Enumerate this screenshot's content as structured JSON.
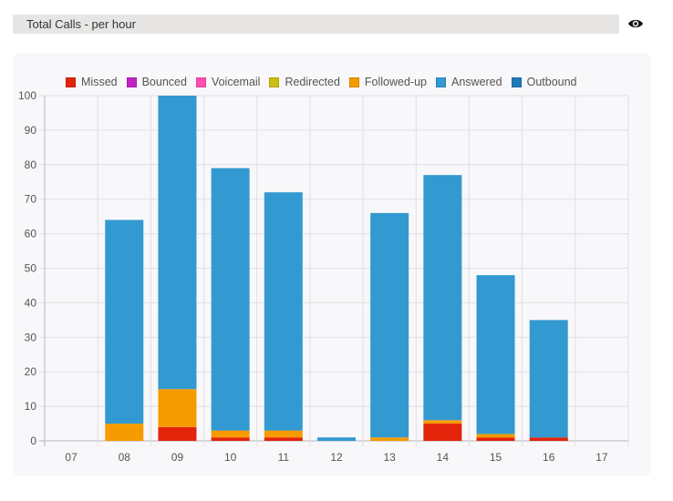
{
  "header": {
    "title": "Total Calls - per hour",
    "visibility_icon": "eye-icon"
  },
  "colors": {
    "Missed": "#e3240b",
    "Bounced": "#c221c6",
    "Voicemail": "#ff4fb0",
    "Redirected": "#cdbd12",
    "Followed-up": "#f59b00",
    "Answered": "#3399d1",
    "Outbound": "#1f7ab8",
    "grid": "#e3dfe6",
    "axis": "#b8b4bd"
  },
  "chart_data": {
    "type": "bar",
    "stacked": true,
    "title": "",
    "xlabel": "",
    "ylabel": "",
    "categories": [
      "07",
      "08",
      "09",
      "10",
      "11",
      "12",
      "13",
      "14",
      "15",
      "16",
      "17"
    ],
    "ylim": [
      0,
      100
    ],
    "yticks": [
      0,
      10,
      20,
      30,
      40,
      50,
      60,
      70,
      80,
      90,
      100
    ],
    "grid": true,
    "legend_position": "top",
    "series": [
      {
        "name": "Missed",
        "values": [
          0,
          0,
          4,
          1,
          1,
          0,
          0,
          5,
          1,
          1,
          0
        ]
      },
      {
        "name": "Bounced",
        "values": [
          0,
          0,
          0,
          0,
          0,
          0,
          0,
          0,
          0,
          0,
          0
        ]
      },
      {
        "name": "Voicemail",
        "values": [
          0,
          0,
          0,
          0,
          0,
          0,
          0,
          0,
          0,
          0,
          0
        ]
      },
      {
        "name": "Redirected",
        "values": [
          0,
          0,
          0,
          0,
          0,
          0,
          0,
          0,
          0,
          0,
          0
        ]
      },
      {
        "name": "Followed-up",
        "values": [
          0,
          5,
          11,
          2,
          2,
          0,
          1,
          1,
          1,
          0,
          0
        ]
      },
      {
        "name": "Answered",
        "values": [
          0,
          59,
          85,
          76,
          69,
          1,
          65,
          71,
          46,
          34,
          0
        ]
      },
      {
        "name": "Outbound",
        "values": [
          0,
          0,
          0,
          0,
          0,
          0,
          0,
          0,
          0,
          0,
          0
        ]
      }
    ]
  }
}
